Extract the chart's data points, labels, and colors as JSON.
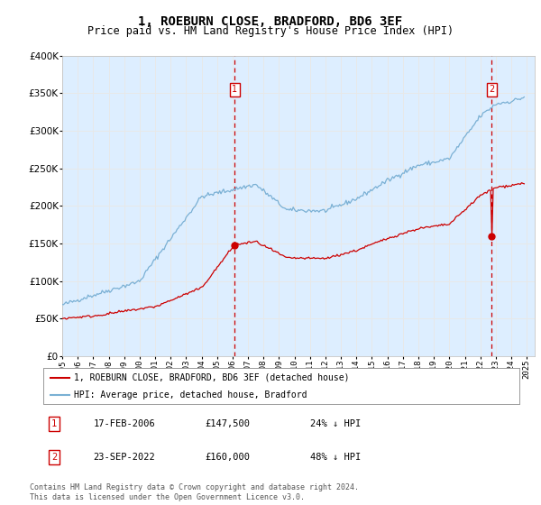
{
  "title": "1, ROEBURN CLOSE, BRADFORD, BD6 3EF",
  "subtitle": "Price paid vs. HM Land Registry's House Price Index (HPI)",
  "title_fontsize": 10,
  "subtitle_fontsize": 8.5,
  "ylim": [
    0,
    400000
  ],
  "yticks": [
    0,
    50000,
    100000,
    150000,
    200000,
    250000,
    300000,
    350000,
    400000
  ],
  "xlim_start": 1995.0,
  "xlim_end": 2025.5,
  "background_color": "#ffffff",
  "plot_bg_color": "#ddeeff",
  "grid_color": "#e8e8e8",
  "sale1_x": 2006.125,
  "sale1_y": 147500,
  "sale2_x": 2022.72,
  "sale2_y": 160000,
  "sale_color": "#cc0000",
  "hpi_color": "#7ab0d4",
  "legend_label_red": "1, ROEBURN CLOSE, BRADFORD, BD6 3EF (detached house)",
  "legend_label_blue": "HPI: Average price, detached house, Bradford",
  "table_row1": [
    "1",
    "17-FEB-2006",
    "£147,500",
    "24% ↓ HPI"
  ],
  "table_row2": [
    "2",
    "23-SEP-2022",
    "£160,000",
    "48% ↓ HPI"
  ],
  "footer": "Contains HM Land Registry data © Crown copyright and database right 2024.\nThis data is licensed under the Open Government Licence v3.0."
}
